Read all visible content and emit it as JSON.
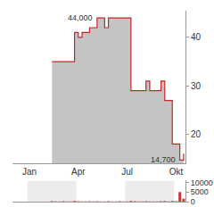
{
  "chart_data": [
    {
      "type": "line",
      "categories": [
        null,
        null,
        null,
        null,
        "Jan",
        null,
        null,
        null,
        null,
        null,
        null,
        null,
        null,
        null,
        null,
        null,
        null,
        "Apr",
        null,
        null,
        null,
        null,
        null,
        null,
        null,
        null,
        null,
        null,
        null,
        null,
        "Jul",
        null,
        null,
        null,
        null,
        null,
        null,
        null,
        null,
        null,
        null,
        null,
        null,
        "Okt",
        null,
        null
      ],
      "values": [
        null,
        null,
        null,
        null,
        null,
        null,
        null,
        null,
        null,
        null,
        35,
        35,
        35,
        35,
        35,
        35,
        41,
        40,
        41,
        41,
        42,
        42,
        44,
        44,
        42,
        44,
        44,
        44,
        44,
        44,
        44,
        29,
        29,
        29,
        29,
        31,
        29,
        29,
        29,
        31,
        27,
        27,
        18,
        18,
        14.7,
        16
      ],
      "color": "#cc2222",
      "ylim": [
        14,
        45.5
      ],
      "yticks": [
        20,
        30,
        40
      ],
      "grid": false,
      "annotations": [
        {
          "text": "44,000",
          "x": 22,
          "y": 44
        },
        {
          "text": "14,700",
          "x": 44,
          "y": 14.7
        }
      ]
    },
    {
      "type": "bar",
      "categories": [
        null,
        null,
        null,
        null,
        "Jan",
        null,
        null,
        null,
        null,
        null,
        null,
        null,
        null,
        null,
        null,
        null,
        null,
        "Apr",
        null,
        null,
        null,
        null,
        null,
        null,
        null,
        null,
        null,
        null,
        null,
        null,
        "Jul",
        null,
        null,
        null,
        null,
        null,
        null,
        null,
        null,
        null,
        null,
        null,
        null,
        "Okt",
        null,
        null
      ],
      "values": [
        null,
        null,
        null,
        null,
        null,
        null,
        null,
        null,
        null,
        null,
        200,
        150,
        100,
        250,
        100,
        150,
        300,
        200,
        150,
        100,
        200,
        150,
        250,
        100,
        150,
        200,
        100,
        150,
        200,
        100,
        150,
        400,
        200,
        150,
        100,
        200,
        150,
        100,
        150,
        200,
        300,
        150,
        400,
        200,
        5000,
        1500
      ],
      "color": "#cc3333",
      "ylim": [
        0,
        11000
      ],
      "yticks": [
        0,
        5000,
        10000
      ],
      "grid": false,
      "tick_labels": "y"
    }
  ]
}
